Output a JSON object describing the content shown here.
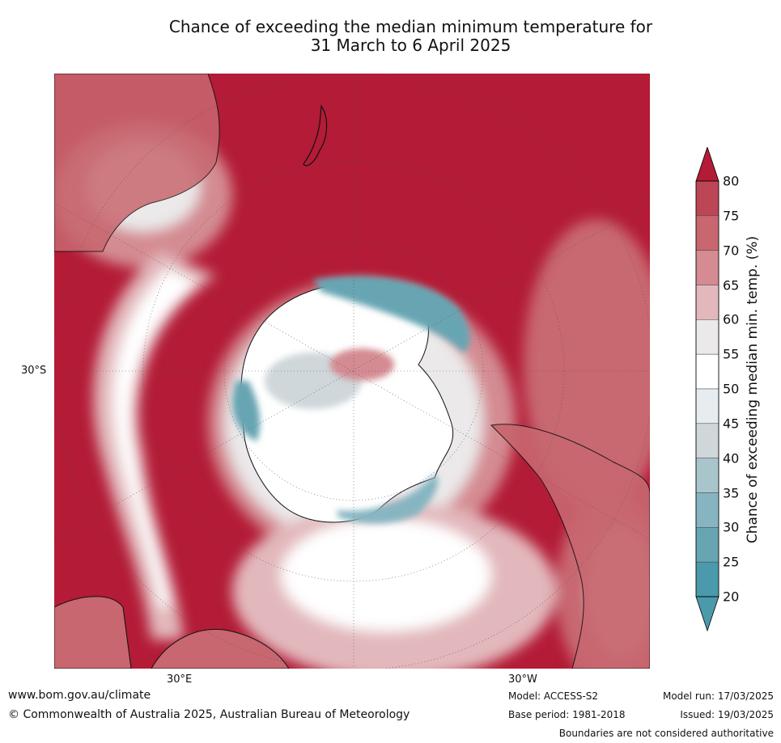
{
  "title_line1": "Chance of exceeding the median minimum temperature for",
  "title_line2": "31 March to 6 April 2025",
  "map": {
    "lat_label": "30°S",
    "lon_label_east": "30°E",
    "lon_label_west": "30°W"
  },
  "colorbar": {
    "label": "Chance of exceeding median min. temp. (%)",
    "ticks": [
      "80",
      "75",
      "70",
      "65",
      "60",
      "55",
      "50",
      "45",
      "40",
      "35",
      "30",
      "25",
      "20"
    ],
    "colors": [
      "#b31b36",
      "#bd4656",
      "#c8676f",
      "#d48b92",
      "#e2b8bc",
      "#ebe9ea",
      "#ffffff",
      "#e6ecef",
      "#cfd7da",
      "#a9c5cc",
      "#86b5c1",
      "#68a5b2",
      "#4a9aab"
    ]
  },
  "footer": {
    "website": "www.bom.gov.au/climate",
    "copyright": "© Commonwealth of Australia 2025, Australian Bureau of Meteorology",
    "model": "Model: ACCESS-S2",
    "base_period": "Base period: 1981-2018",
    "model_run": "Model run: 17/03/2025",
    "issued": "Issued: 19/03/2025",
    "disclaimer": "Boundaries are not considered authoritative"
  }
}
